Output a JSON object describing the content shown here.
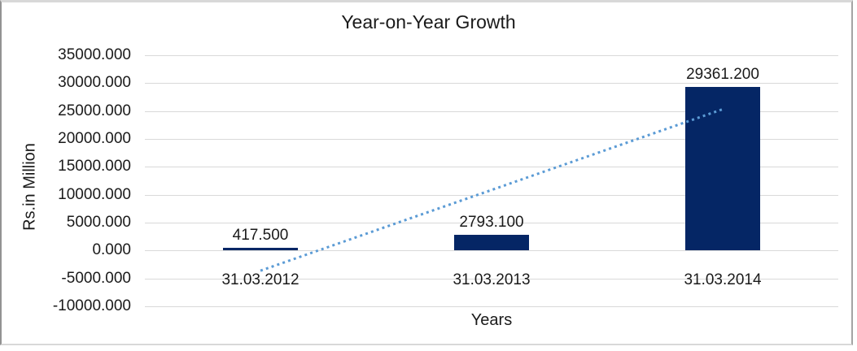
{
  "chart_data": {
    "type": "bar",
    "title": "Year-on-Year Growth",
    "xlabel": "Years",
    "ylabel": "Rs.in Million",
    "categories": [
      "31.03.2012",
      "31.03.2013",
      "31.03.2014"
    ],
    "values": [
      417.5,
      2793.1,
      29361.2
    ],
    "data_labels": [
      "417.500",
      "2793.100",
      "29361.200"
    ],
    "y_ticks": [
      "35000.000",
      "30000.000",
      "25000.000",
      "20000.000",
      "15000.000",
      "10000.000",
      "5000.000",
      "0.000",
      "-5000.000",
      "-10000.000"
    ],
    "ylim": [
      -10000,
      35000
    ],
    "y_step": 5000,
    "grid": true,
    "legend": false,
    "colors": {
      "bar": "#052665",
      "gridline": "#d9d9d9",
      "trendline": "#5b9bd5",
      "text": "#1a1a1a"
    },
    "trendline": {
      "fit": "linear",
      "style": "dotted",
      "start_value": -3614.6,
      "end_value": 25329.1
    }
  }
}
